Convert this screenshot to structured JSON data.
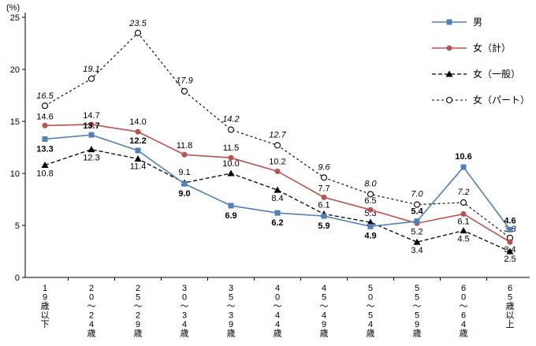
{
  "chart_data": {
    "type": "line",
    "title": "",
    "ylabel": "(%)",
    "xlabel": "",
    "ylim": [
      0,
      25
    ],
    "yticks": [
      0,
      5,
      10,
      15,
      20,
      25
    ],
    "grid": false,
    "legend_position": "top-right",
    "categories": [
      "19歳以下",
      "20〜24歳",
      "25〜29歳",
      "30〜34歳",
      "35〜39歳",
      "40〜44歳",
      "45〜49歳",
      "50〜54歳",
      "55〜59歳",
      "60〜64歳",
      "65歳以上"
    ],
    "series": [
      {
        "key": "male",
        "name": "男",
        "color": "#4f81bd",
        "line": "solid",
        "marker": "square",
        "values": [
          13.3,
          13.7,
          12.2,
          9.0,
          6.9,
          6.2,
          5.9,
          4.9,
          5.4,
          10.6,
          4.6
        ]
      },
      {
        "key": "female_total",
        "name": "女（計）",
        "color": "#c0504d",
        "line": "solid",
        "marker": "circle",
        "values": [
          14.6,
          14.7,
          14.0,
          11.8,
          11.5,
          10.2,
          7.7,
          6.5,
          5.2,
          6.1,
          3.4
        ]
      },
      {
        "key": "female_general",
        "name": "女（一般）",
        "color": "#000000",
        "line": "dashed",
        "marker": "triangle",
        "values": [
          10.8,
          12.3,
          11.4,
          9.1,
          10.0,
          8.4,
          6.1,
          5.3,
          3.4,
          4.5,
          2.5
        ]
      },
      {
        "key": "female_part",
        "name": "女（パート）",
        "color": "#000000",
        "line": "dashed",
        "marker": "open-circle",
        "values": [
          16.5,
          19.1,
          23.5,
          17.9,
          14.2,
          12.7,
          9.6,
          8.0,
          7.0,
          7.2,
          3.8
        ]
      }
    ]
  }
}
